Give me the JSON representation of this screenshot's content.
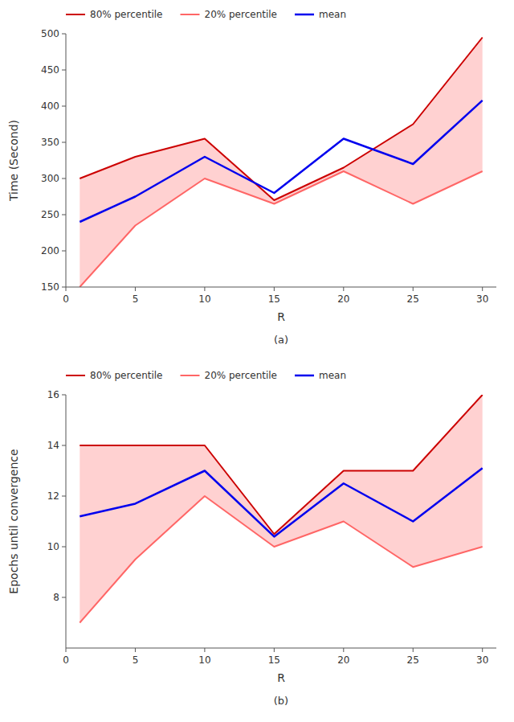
{
  "chart_data": [
    {
      "type": "line",
      "title": "(a)",
      "x_label": "R",
      "y_label": "Time (Second)",
      "x": [
        1,
        5,
        10,
        15,
        20,
        25,
        30
      ],
      "series": [
        {
          "name": "80% percentile",
          "color": "#cc0000",
          "values": [
            300,
            330,
            355,
            270,
            315,
            375,
            495
          ]
        },
        {
          "name": "20% percentile",
          "color": "#ff6666",
          "values": [
            150,
            235,
            300,
            265,
            310,
            265,
            310
          ]
        },
        {
          "name": "mean",
          "color": "#0000ee",
          "values": [
            240,
            275,
            330,
            280,
            355,
            320,
            408
          ]
        }
      ],
      "xlim": [
        0,
        31
      ],
      "xticks": [
        0,
        5,
        10,
        15,
        20,
        25,
        30
      ],
      "ylim": [
        150,
        500
      ],
      "yticks": [
        150,
        200,
        250,
        300,
        350,
        400,
        450,
        500
      ],
      "grid": false,
      "legend": "top"
    },
    {
      "type": "line",
      "title": "(b)",
      "x_label": "R",
      "y_label": "Epochs until convergence",
      "x": [
        1,
        5,
        10,
        15,
        20,
        25,
        30
      ],
      "series": [
        {
          "name": "80% percentile",
          "color": "#cc0000",
          "values": [
            14.0,
            14.0,
            14.0,
            10.5,
            13.0,
            13.0,
            16.0
          ]
        },
        {
          "name": "20% percentile",
          "color": "#ff6666",
          "values": [
            7.0,
            9.5,
            12.0,
            10.0,
            11.0,
            9.2,
            10.0
          ]
        },
        {
          "name": "mean",
          "color": "#0000ee",
          "values": [
            11.2,
            11.7,
            13.0,
            10.4,
            12.5,
            11.0,
            13.1
          ]
        }
      ],
      "xlim": [
        0,
        31
      ],
      "xticks": [
        0,
        5,
        10,
        15,
        20,
        25,
        30
      ],
      "ylim": [
        6,
        16
      ],
      "yticks": [
        8,
        10,
        12,
        14,
        16
      ],
      "grid": false,
      "legend": "top"
    }
  ]
}
